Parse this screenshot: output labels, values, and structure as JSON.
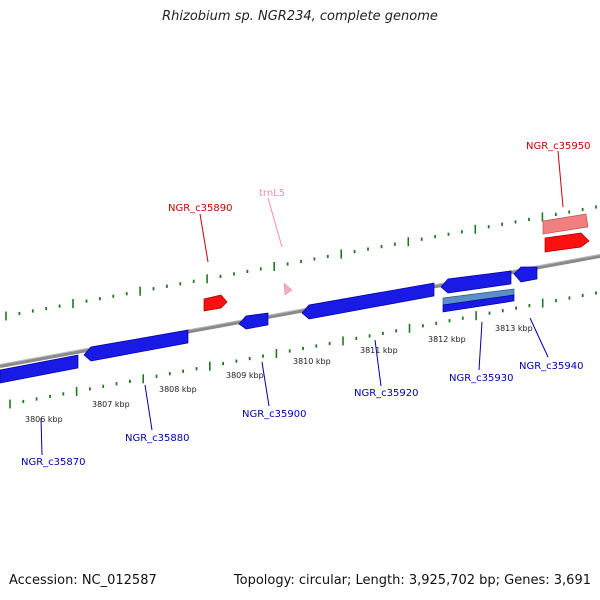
{
  "title": "Rhizobium sp. NGR234, complete genome",
  "footer": {
    "accession": "Accession: NC_012587",
    "summary": "Topology: circular; Length: 3,925,702 bp; Genes: 3,691"
  },
  "colors": {
    "backbone": "#8a8a8a",
    "ticks": "#1e7a1e",
    "forward_gene": "#ff0000",
    "reverse_gene": "#1010e0",
    "trna": "#f7a8c8",
    "label_red": "#cc0000",
    "label_blue": "#0000aa",
    "label_pink": "#f08cc0"
  },
  "scale_ticks": [
    {
      "label": "3806 kbp"
    },
    {
      "label": "3807 kbp"
    },
    {
      "label": "3808 kbp"
    },
    {
      "label": "3809 kbp"
    },
    {
      "label": "3810 kbp"
    },
    {
      "label": "3811 kbp"
    },
    {
      "label": "3812 kbp"
    },
    {
      "label": "3813 kbp"
    }
  ],
  "gene_labels": [
    {
      "name": "NGR_c35870",
      "strand": "reverse"
    },
    {
      "name": "NGR_c35880",
      "strand": "reverse"
    },
    {
      "name": "NGR_c35890",
      "strand": "forward"
    },
    {
      "name": "trnL5",
      "strand": "trna"
    },
    {
      "name": "NGR_c35900",
      "strand": "reverse"
    },
    {
      "name": "NGR_c35920",
      "strand": "reverse"
    },
    {
      "name": "NGR_c35930",
      "strand": "reverse"
    },
    {
      "name": "NGR_c35940",
      "strand": "reverse"
    },
    {
      "name": "NGR_c35950",
      "strand": "forward"
    }
  ]
}
